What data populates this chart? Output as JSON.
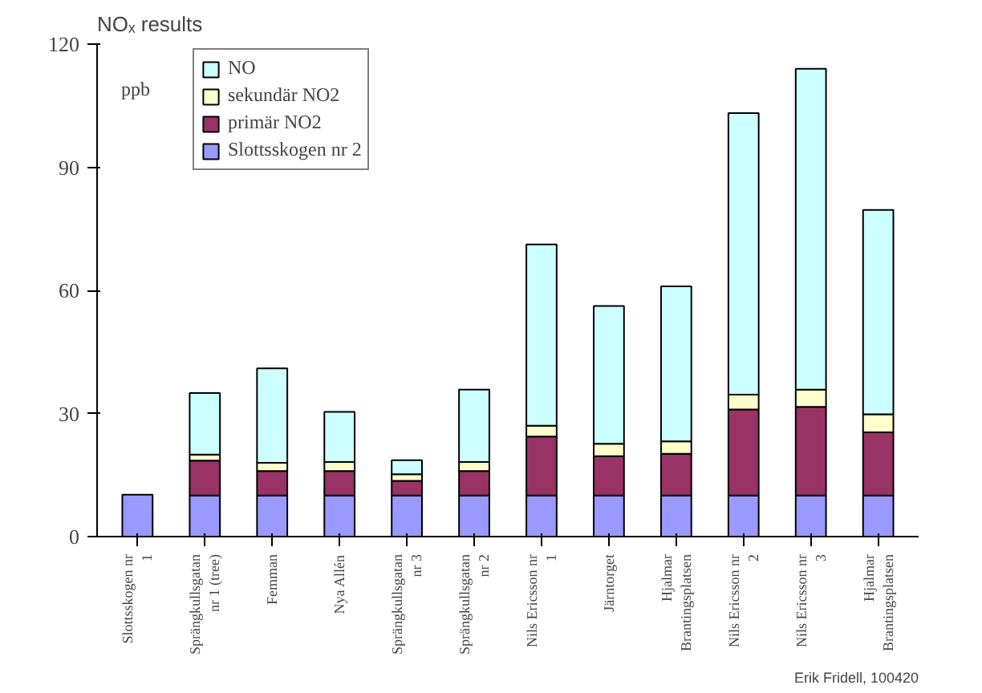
{
  "chart_data": {
    "type": "bar",
    "stacked": true,
    "title": "NOₓ results",
    "categories": [
      "Slottsskogen nr 1",
      "Sprängkullsgatan nr 1 (tree)",
      "Femman",
      "Nya Allén",
      "Sprängkullsgatan nr 3",
      "Sprängkullsgatan nr 2",
      "Nils Ericsson nr 1",
      "Järntorget",
      "Hjalmar Brantingsplatsen",
      "Nils Ericsson nr 2",
      "Nils Ericsson nr 3",
      "Hjalmar Brantingsplatsen"
    ],
    "series": [
      {
        "name": "Slottsskogen nr 2",
        "color": "#9999ff",
        "values": [
          10.2,
          10,
          10,
          10,
          10,
          10,
          10,
          10,
          10,
          10,
          10,
          10
        ]
      },
      {
        "name": "primär NO2",
        "color": "#993366",
        "values": [
          null,
          8.5,
          6,
          6,
          3.6,
          6,
          14.4,
          9.6,
          10.2,
          21,
          21.6,
          15.4
        ]
      },
      {
        "name": "sekundär NO2",
        "color": "#ffffcc",
        "values": [
          null,
          1.5,
          2,
          2.2,
          1.6,
          2.2,
          2.6,
          3,
          3,
          3.6,
          4.2,
          4.4
        ]
      },
      {
        "name": "NO",
        "color": "#ccffff",
        "values": [
          null,
          15,
          23,
          12.2,
          3.4,
          17.6,
          44.2,
          33.6,
          37.8,
          68.6,
          78.2,
          49.8
        ]
      }
    ],
    "ylim": [
      0,
      120
    ],
    "yticks": [
      0,
      30,
      60,
      90,
      120
    ],
    "grid": false,
    "legend": "top left",
    "annotations": [
      "ppb",
      "Erik Fridell, 100420"
    ]
  }
}
